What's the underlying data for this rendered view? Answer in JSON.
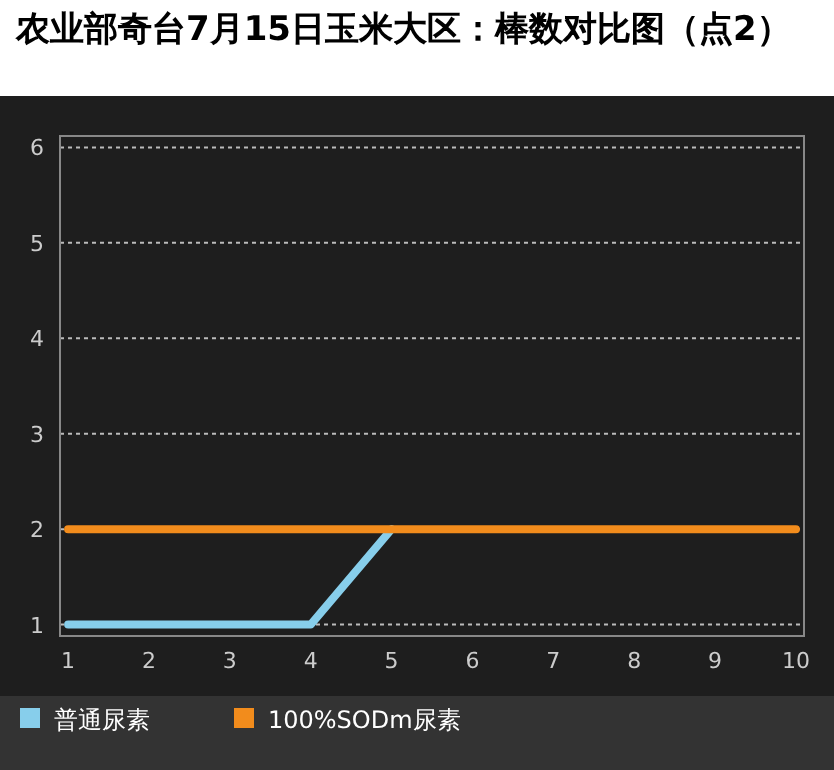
{
  "chart_data": {
    "type": "line",
    "title": "农业部奇台7月15日玉米大区：棒数对比图（点2）",
    "x": [
      1,
      2,
      3,
      4,
      5,
      6,
      7,
      8,
      9,
      10
    ],
    "series": [
      {
        "name": "普通尿素",
        "color": "#87ceeb",
        "values": [
          1,
          1,
          1,
          1,
          2,
          null,
          null,
          null,
          null,
          null
        ]
      },
      {
        "name": "100%SODm尿素",
        "color": "#f28c1c",
        "values": [
          2,
          2,
          2,
          2,
          2,
          2,
          2,
          2,
          2,
          2
        ]
      }
    ],
    "xlim": [
      0.9,
      10.1
    ],
    "ylim": [
      0.88,
      6.12
    ],
    "xticks": [
      1,
      2,
      3,
      4,
      5,
      6,
      7,
      8,
      9,
      10
    ],
    "yticks": [
      1,
      2,
      3,
      4,
      5,
      6
    ],
    "grid": "y",
    "legend": "bottom",
    "marker": "none",
    "line_style": "solid"
  }
}
